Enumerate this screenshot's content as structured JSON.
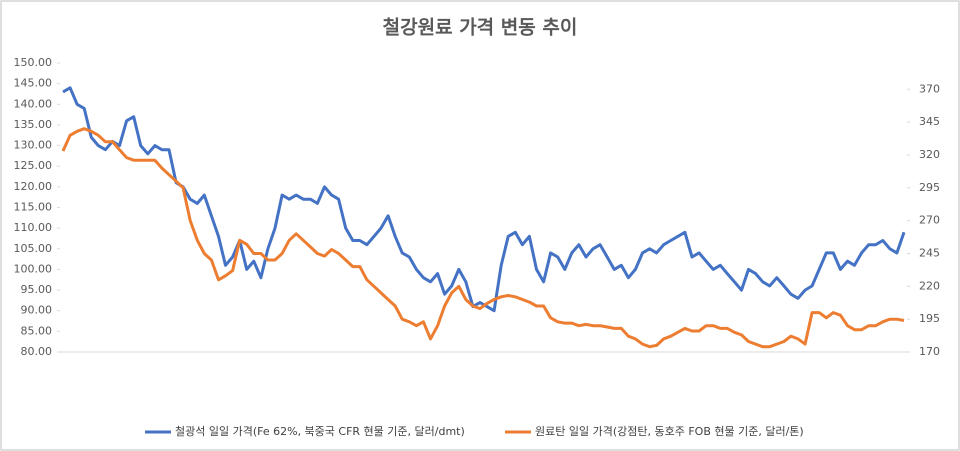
{
  "chart_data": {
    "type": "line",
    "title": "철강원료 가격 변동 추이",
    "ylim": [
      80,
      150
    ],
    "yticks": [
      {
        "value": 80,
        "label": "80.00"
      },
      {
        "value": 85,
        "label": "85.00"
      },
      {
        "value": 90,
        "label": "90.00"
      },
      {
        "value": 95,
        "label": "95.00"
      },
      {
        "value": 100,
        "label": "100.00"
      },
      {
        "value": 105,
        "label": "105.00"
      },
      {
        "value": 110,
        "label": "110.00"
      },
      {
        "value": 115,
        "label": "115.00"
      },
      {
        "value": 120,
        "label": "120.00"
      },
      {
        "value": 125,
        "label": "125.00"
      },
      {
        "value": 130,
        "label": "130.00"
      },
      {
        "value": 135,
        "label": "135.00"
      },
      {
        "value": 140,
        "label": "140.00"
      },
      {
        "value": 145,
        "label": "145.00"
      },
      {
        "value": 150,
        "label": "150.00"
      }
    ],
    "y2lim": [
      170,
      390
    ],
    "y2ticks": [
      170,
      195,
      220,
      245,
      270,
      295,
      320,
      345,
      370
    ],
    "series": [
      {
        "name": "철광석 일일 가격(Fe 62%, 북중국 CFR 현물 기준, 달러/dmt)",
        "color": "#4472c4",
        "values": [
          143,
          144,
          140,
          139,
          132,
          130,
          129,
          131,
          130,
          136,
          137,
          130,
          128,
          130,
          129,
          129,
          121,
          120,
          117,
          116,
          118,
          113,
          108,
          101,
          103,
          107,
          100,
          102,
          98,
          105,
          110,
          118,
          117,
          118,
          117,
          117,
          116,
          120,
          118,
          117,
          110,
          107,
          107,
          106,
          108,
          110,
          113,
          108,
          104,
          103,
          100,
          98,
          97,
          99,
          94,
          96,
          100,
          97,
          91,
          92,
          91,
          90,
          101,
          108,
          109,
          106,
          108,
          100,
          97,
          104,
          103,
          100,
          104,
          106,
          103,
          105,
          106,
          103,
          100,
          101,
          98,
          100,
          104,
          105,
          104,
          106,
          107,
          108,
          109,
          103,
          104,
          102,
          100,
          101,
          99,
          97,
          95,
          100,
          99,
          97,
          96,
          98,
          96,
          94,
          93,
          95,
          96,
          100,
          104,
          104,
          100,
          102,
          101,
          104,
          106,
          106,
          107,
          105,
          104,
          109
        ]
      },
      {
        "name": "원료탄 일일 가격(강점탄, 동호주 FOB 현물 기준, 달러/톤)",
        "color": "#ed7d31",
        "axis": "y2",
        "values": [
          323,
          335,
          338,
          340,
          338,
          335,
          330,
          330,
          324,
          318,
          316,
          316,
          316,
          316,
          310,
          305,
          300,
          295,
          270,
          255,
          245,
          240,
          225,
          228,
          232,
          255,
          252,
          245,
          245,
          240,
          240,
          245,
          255,
          260,
          255,
          250,
          245,
          243,
          248,
          245,
          240,
          235,
          235,
          225,
          220,
          215,
          210,
          205,
          195,
          193,
          190,
          193,
          180,
          190,
          205,
          215,
          220,
          210,
          205,
          203,
          207,
          210,
          212,
          213,
          212,
          210,
          208,
          205,
          205,
          196,
          193,
          192,
          192,
          190,
          191,
          190,
          190,
          189,
          188,
          188,
          182,
          180,
          176,
          174,
          175,
          180,
          182,
          185,
          188,
          186,
          186,
          190,
          190,
          188,
          188,
          185,
          183,
          178,
          176,
          174,
          174,
          176,
          178,
          182,
          180,
          176,
          200,
          200,
          196,
          200,
          198,
          190,
          187,
          187,
          190,
          190,
          193,
          195,
          195,
          194
        ]
      }
    ]
  }
}
